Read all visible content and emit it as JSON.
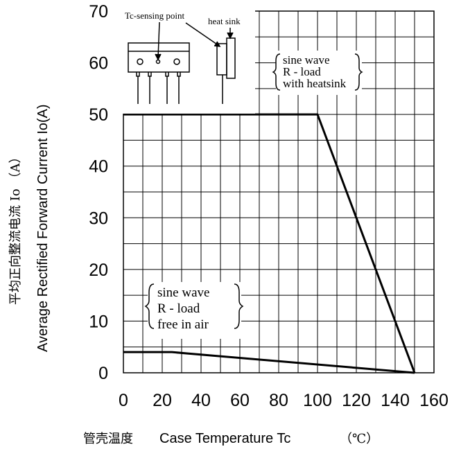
{
  "chart_data": {
    "type": "line",
    "xlabel_zh": "管壳温度",
    "xlabel_en": "Case Temperature Tc",
    "xunit": "（℃）",
    "ylabel_zh": "平均正向整流电流 Io （A）",
    "ylabel_en": "Average Rectified Forward Current Io(A)",
    "xlim": [
      0,
      160
    ],
    "ylim": [
      0,
      70
    ],
    "xticks": [
      0,
      20,
      40,
      60,
      80,
      100,
      120,
      140,
      160
    ],
    "yticks": [
      0,
      10,
      20,
      30,
      40,
      50,
      60,
      70
    ],
    "grid": true,
    "series": [
      {
        "x": [
          0,
          100,
          150
        ],
        "y": [
          50,
          50,
          0
        ]
      },
      {
        "x": [
          0,
          25,
          150
        ],
        "y": [
          4,
          4,
          0
        ]
      }
    ],
    "annotations": {
      "heatsink": [
        "sine wave",
        "R - load",
        "with heatsink"
      ],
      "free_air": [
        "sine wave",
        "R - load",
        "free in air"
      ],
      "tc_sensing_point": "Tc-sensing point",
      "heat_sink": "heat sink"
    }
  }
}
